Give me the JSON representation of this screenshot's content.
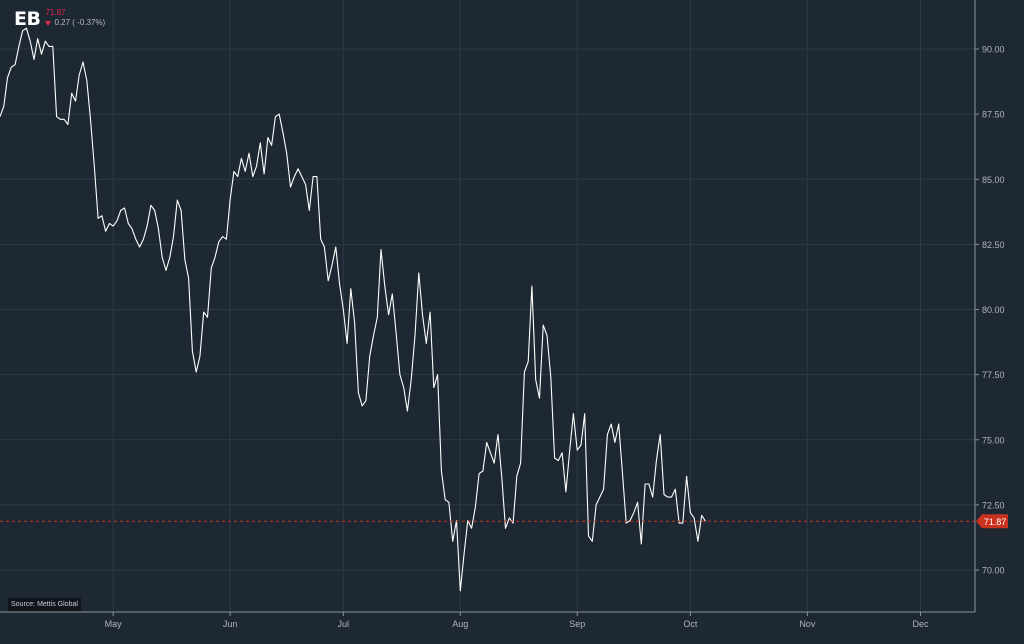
{
  "ticker": {
    "symbol": "EB",
    "last_price": "71.87",
    "change": "0.27 ( -0.37%)"
  },
  "source": "Source: Mettis Global",
  "colors": {
    "background": "#1e2833",
    "line": "#ffffff",
    "grid": "#2c3845",
    "price_marker": "#c8321e",
    "down": "#e0284a"
  },
  "chart_data": {
    "type": "line",
    "title": "",
    "xlabel": "",
    "ylabel": "",
    "ylim": [
      68.5,
      92
    ],
    "y_ticks": [
      "70.00",
      "72.50",
      "75.00",
      "77.50",
      "80.00",
      "82.50",
      "85.00",
      "87.50",
      "90.00"
    ],
    "y_tick_values": [
      70,
      72.5,
      75,
      77.5,
      80,
      82.5,
      85,
      87.5,
      90
    ],
    "x_ticks": [
      {
        "label": "May",
        "date": "2024-05-01"
      },
      {
        "label": "Jun",
        "date": "2024-06-01"
      },
      {
        "label": "Jul",
        "date": "2024-07-01"
      },
      {
        "label": "Aug",
        "date": "2024-08-01"
      },
      {
        "label": "Sep",
        "date": "2024-09-01"
      },
      {
        "label": "Oct",
        "date": "2024-10-01"
      },
      {
        "label": "Nov",
        "date": "2024-11-01"
      },
      {
        "label": "Dec",
        "date": "2024-12-01"
      }
    ],
    "x_range": [
      "2024-04-01",
      "2024-12-12"
    ],
    "grid": true,
    "last_value": 71.87,
    "series": [
      {
        "name": "",
        "points": [
          [
            "2024-04-01",
            87.4
          ],
          [
            "2024-04-02",
            87.8
          ],
          [
            "2024-04-03",
            88.9
          ],
          [
            "2024-04-04",
            89.3
          ],
          [
            "2024-04-05",
            89.4
          ],
          [
            "2024-04-06",
            90.1
          ],
          [
            "2024-04-07",
            90.7
          ],
          [
            "2024-04-08",
            90.8
          ],
          [
            "2024-04-09",
            90.3
          ],
          [
            "2024-04-10",
            89.6
          ],
          [
            "2024-04-11",
            90.4
          ],
          [
            "2024-04-12",
            89.8
          ],
          [
            "2024-04-13",
            90.3
          ],
          [
            "2024-04-14",
            90.1
          ],
          [
            "2024-04-15",
            90.1
          ],
          [
            "2024-04-16",
            87.4
          ],
          [
            "2024-04-17",
            87.3
          ],
          [
            "2024-04-18",
            87.3
          ],
          [
            "2024-04-19",
            87.1
          ],
          [
            "2024-04-20",
            88.3
          ],
          [
            "2024-04-21",
            88.0
          ],
          [
            "2024-04-22",
            89.0
          ],
          [
            "2024-04-23",
            89.5
          ],
          [
            "2024-04-24",
            88.8
          ],
          [
            "2024-04-25",
            87.3
          ],
          [
            "2024-04-26",
            85.5
          ],
          [
            "2024-04-27",
            83.5
          ],
          [
            "2024-04-28",
            83.6
          ],
          [
            "2024-04-29",
            83.0
          ],
          [
            "2024-04-30",
            83.3
          ],
          [
            "2024-05-01",
            83.2
          ],
          [
            "2024-05-02",
            83.4
          ],
          [
            "2024-05-03",
            83.8
          ],
          [
            "2024-05-04",
            83.9
          ],
          [
            "2024-05-05",
            83.3
          ],
          [
            "2024-05-06",
            83.1
          ],
          [
            "2024-05-07",
            82.7
          ],
          [
            "2024-05-08",
            82.4
          ],
          [
            "2024-05-09",
            82.7
          ],
          [
            "2024-05-10",
            83.2
          ],
          [
            "2024-05-11",
            84.0
          ],
          [
            "2024-05-12",
            83.8
          ],
          [
            "2024-05-13",
            83.1
          ],
          [
            "2024-05-14",
            82.0
          ],
          [
            "2024-05-15",
            81.5
          ],
          [
            "2024-05-16",
            82.0
          ],
          [
            "2024-05-17",
            82.8
          ],
          [
            "2024-05-18",
            84.2
          ],
          [
            "2024-05-19",
            83.8
          ],
          [
            "2024-05-20",
            81.9
          ],
          [
            "2024-05-21",
            81.2
          ],
          [
            "2024-05-22",
            78.4
          ],
          [
            "2024-05-23",
            77.6
          ],
          [
            "2024-05-24",
            78.2
          ],
          [
            "2024-05-25",
            79.9
          ],
          [
            "2024-05-26",
            79.7
          ],
          [
            "2024-05-27",
            81.6
          ],
          [
            "2024-05-28",
            82.0
          ],
          [
            "2024-05-29",
            82.6
          ],
          [
            "2024-05-30",
            82.8
          ],
          [
            "2024-05-31",
            82.7
          ],
          [
            "2024-06-01",
            84.2
          ],
          [
            "2024-06-02",
            85.3
          ],
          [
            "2024-06-03",
            85.1
          ],
          [
            "2024-06-04",
            85.8
          ],
          [
            "2024-06-05",
            85.3
          ],
          [
            "2024-06-06",
            86.0
          ],
          [
            "2024-06-07",
            85.1
          ],
          [
            "2024-06-08",
            85.5
          ],
          [
            "2024-06-09",
            86.4
          ],
          [
            "2024-06-10",
            85.2
          ],
          [
            "2024-06-11",
            86.6
          ],
          [
            "2024-06-12",
            86.3
          ],
          [
            "2024-06-13",
            87.4
          ],
          [
            "2024-06-14",
            87.5
          ],
          [
            "2024-06-15",
            86.8
          ],
          [
            "2024-06-16",
            86.0
          ],
          [
            "2024-06-17",
            84.7
          ],
          [
            "2024-06-18",
            85.1
          ],
          [
            "2024-06-19",
            85.4
          ],
          [
            "2024-06-20",
            85.1
          ],
          [
            "2024-06-21",
            84.8
          ],
          [
            "2024-06-22",
            83.8
          ],
          [
            "2024-06-23",
            85.1
          ],
          [
            "2024-06-24",
            85.1
          ],
          [
            "2024-06-25",
            82.7
          ],
          [
            "2024-06-26",
            82.4
          ],
          [
            "2024-06-27",
            81.1
          ],
          [
            "2024-06-28",
            81.7
          ],
          [
            "2024-06-29",
            82.4
          ],
          [
            "2024-06-30",
            81.0
          ],
          [
            "2024-07-01",
            80.0
          ],
          [
            "2024-07-02",
            78.7
          ],
          [
            "2024-07-03",
            80.8
          ],
          [
            "2024-07-04",
            79.5
          ],
          [
            "2024-07-05",
            76.8
          ],
          [
            "2024-07-06",
            76.3
          ],
          [
            "2024-07-07",
            76.5
          ],
          [
            "2024-07-08",
            78.2
          ],
          [
            "2024-07-09",
            79.0
          ],
          [
            "2024-07-10",
            79.7
          ],
          [
            "2024-07-11",
            82.3
          ],
          [
            "2024-07-12",
            80.9
          ],
          [
            "2024-07-13",
            79.8
          ],
          [
            "2024-07-14",
            80.6
          ],
          [
            "2024-07-15",
            79.1
          ],
          [
            "2024-07-16",
            77.5
          ],
          [
            "2024-07-17",
            77.0
          ],
          [
            "2024-07-18",
            76.1
          ],
          [
            "2024-07-19",
            77.3
          ],
          [
            "2024-07-20",
            79.0
          ],
          [
            "2024-07-21",
            81.4
          ],
          [
            "2024-07-22",
            79.8
          ],
          [
            "2024-07-23",
            78.7
          ],
          [
            "2024-07-24",
            79.9
          ],
          [
            "2024-07-25",
            77.0
          ],
          [
            "2024-07-26",
            77.5
          ],
          [
            "2024-07-27",
            73.8
          ],
          [
            "2024-07-28",
            72.7
          ],
          [
            "2024-07-29",
            72.6
          ],
          [
            "2024-07-30",
            71.1
          ],
          [
            "2024-07-31",
            71.9
          ],
          [
            "2024-08-01",
            69.2
          ],
          [
            "2024-08-02",
            70.6
          ],
          [
            "2024-08-03",
            71.9
          ],
          [
            "2024-08-04",
            71.6
          ],
          [
            "2024-08-05",
            72.4
          ],
          [
            "2024-08-06",
            73.7
          ],
          [
            "2024-08-07",
            73.8
          ],
          [
            "2024-08-08",
            74.9
          ],
          [
            "2024-08-09",
            74.5
          ],
          [
            "2024-08-10",
            74.1
          ],
          [
            "2024-08-11",
            75.2
          ],
          [
            "2024-08-12",
            73.6
          ],
          [
            "2024-08-13",
            71.6
          ],
          [
            "2024-08-14",
            72.0
          ],
          [
            "2024-08-15",
            71.8
          ],
          [
            "2024-08-16",
            73.6
          ],
          [
            "2024-08-17",
            74.1
          ],
          [
            "2024-08-18",
            77.6
          ],
          [
            "2024-08-19",
            78.0
          ],
          [
            "2024-08-20",
            80.9
          ],
          [
            "2024-08-21",
            77.3
          ],
          [
            "2024-08-22",
            76.6
          ],
          [
            "2024-08-23",
            79.4
          ],
          [
            "2024-08-24",
            79.0
          ],
          [
            "2024-08-25",
            77.4
          ],
          [
            "2024-08-26",
            74.3
          ],
          [
            "2024-08-27",
            74.2
          ],
          [
            "2024-08-28",
            74.5
          ],
          [
            "2024-08-29",
            73.0
          ],
          [
            "2024-08-30",
            74.6
          ],
          [
            "2024-08-31",
            76.0
          ],
          [
            "2024-09-01",
            74.6
          ],
          [
            "2024-09-02",
            74.8
          ],
          [
            "2024-09-03",
            76.0
          ],
          [
            "2024-09-04",
            71.3
          ],
          [
            "2024-09-05",
            71.1
          ],
          [
            "2024-09-06",
            72.5
          ],
          [
            "2024-09-07",
            72.8
          ],
          [
            "2024-09-08",
            73.1
          ],
          [
            "2024-09-09",
            75.2
          ],
          [
            "2024-09-10",
            75.6
          ],
          [
            "2024-09-11",
            74.9
          ],
          [
            "2024-09-12",
            75.6
          ],
          [
            "2024-09-13",
            73.7
          ],
          [
            "2024-09-14",
            71.8
          ],
          [
            "2024-09-15",
            71.9
          ],
          [
            "2024-09-16",
            72.2
          ],
          [
            "2024-09-17",
            72.6
          ],
          [
            "2024-09-18",
            71.0
          ],
          [
            "2024-09-19",
            73.3
          ],
          [
            "2024-09-20",
            73.3
          ],
          [
            "2024-09-21",
            72.8
          ],
          [
            "2024-09-22",
            74.2
          ],
          [
            "2024-09-23",
            75.2
          ],
          [
            "2024-09-24",
            72.9
          ],
          [
            "2024-09-25",
            72.8
          ],
          [
            "2024-09-26",
            72.8
          ],
          [
            "2024-09-27",
            73.1
          ],
          [
            "2024-09-28",
            71.8
          ],
          [
            "2024-09-29",
            71.8
          ],
          [
            "2024-09-30",
            73.6
          ],
          [
            "2024-10-01",
            72.2
          ],
          [
            "2024-10-02",
            72.0
          ],
          [
            "2024-10-03",
            71.1
          ],
          [
            "2024-10-04",
            72.1
          ],
          [
            "2024-10-05",
            71.87
          ]
        ]
      }
    ]
  }
}
